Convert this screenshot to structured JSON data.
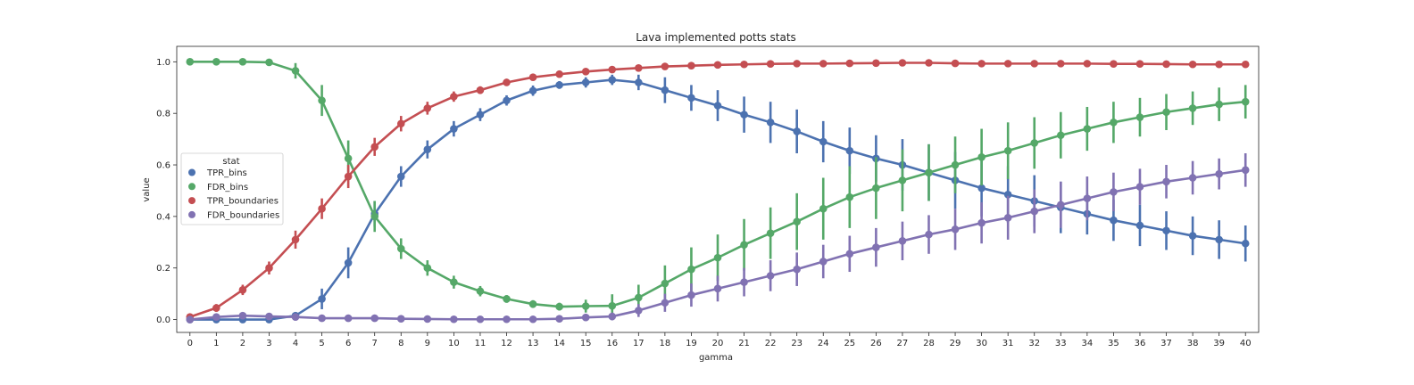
{
  "chart_data": {
    "type": "line",
    "title": "Lava implemented potts stats",
    "xlabel": "gamma",
    "ylabel": "value",
    "x": [
      0,
      1,
      2,
      3,
      4,
      5,
      6,
      7,
      8,
      9,
      10,
      11,
      12,
      13,
      14,
      15,
      16,
      17,
      18,
      19,
      20,
      21,
      22,
      23,
      24,
      25,
      26,
      27,
      28,
      29,
      30,
      31,
      32,
      33,
      34,
      35,
      36,
      37,
      38,
      39,
      40
    ],
    "yticks": [
      0.0,
      0.2,
      0.4,
      0.6,
      0.8,
      1.0
    ],
    "ytick_labels": [
      "0.0",
      "0.2",
      "0.4",
      "0.6",
      "0.8",
      "1.0"
    ],
    "ylim": [
      -0.05,
      1.06
    ],
    "legend_title": "stat",
    "legend_position": "center-left",
    "grid": false,
    "series": [
      {
        "name": "TPR_bins",
        "color": "#4c72b0",
        "values": [
          0.0,
          0.0,
          0.0,
          0.0,
          0.015,
          0.08,
          0.22,
          0.41,
          0.555,
          0.66,
          0.74,
          0.795,
          0.85,
          0.888,
          0.91,
          0.92,
          0.93,
          0.92,
          0.89,
          0.86,
          0.83,
          0.795,
          0.765,
          0.73,
          0.69,
          0.655,
          0.625,
          0.6,
          0.57,
          0.54,
          0.51,
          0.485,
          0.46,
          0.435,
          0.41,
          0.385,
          0.365,
          0.345,
          0.325,
          0.31,
          0.295
        ],
        "err": [
          0.0,
          0.0,
          0.0,
          0.0,
          0.01,
          0.04,
          0.06,
          0.05,
          0.04,
          0.035,
          0.03,
          0.025,
          0.02,
          0.02,
          0.015,
          0.02,
          0.02,
          0.03,
          0.05,
          0.05,
          0.06,
          0.07,
          0.08,
          0.085,
          0.08,
          0.09,
          0.09,
          0.1,
          0.11,
          0.11,
          0.11,
          0.11,
          0.1,
          0.1,
          0.08,
          0.08,
          0.08,
          0.075,
          0.075,
          0.075,
          0.07
        ]
      },
      {
        "name": "FDR_bins",
        "color": "#55a868",
        "values": [
          1.0,
          1.0,
          1.0,
          0.998,
          0.965,
          0.85,
          0.625,
          0.4,
          0.275,
          0.2,
          0.145,
          0.11,
          0.08,
          0.06,
          0.05,
          0.052,
          0.053,
          0.085,
          0.14,
          0.195,
          0.24,
          0.29,
          0.335,
          0.38,
          0.43,
          0.475,
          0.51,
          0.54,
          0.57,
          0.6,
          0.63,
          0.655,
          0.685,
          0.715,
          0.74,
          0.765,
          0.785,
          0.805,
          0.82,
          0.835,
          0.845
        ],
        "err": [
          0.0,
          0.0,
          0.0,
          0.005,
          0.03,
          0.06,
          0.07,
          0.06,
          0.04,
          0.03,
          0.025,
          0.02,
          0.015,
          0.015,
          0.015,
          0.025,
          0.045,
          0.05,
          0.07,
          0.085,
          0.09,
          0.1,
          0.1,
          0.11,
          0.12,
          0.12,
          0.12,
          0.12,
          0.11,
          0.11,
          0.11,
          0.11,
          0.1,
          0.09,
          0.085,
          0.08,
          0.075,
          0.07,
          0.065,
          0.065,
          0.065
        ]
      },
      {
        "name": "TPR_boundaries",
        "color": "#c44e52",
        "values": [
          0.01,
          0.045,
          0.115,
          0.2,
          0.31,
          0.43,
          0.555,
          0.67,
          0.76,
          0.82,
          0.865,
          0.89,
          0.92,
          0.94,
          0.952,
          0.962,
          0.97,
          0.976,
          0.982,
          0.985,
          0.988,
          0.99,
          0.992,
          0.993,
          0.993,
          0.994,
          0.995,
          0.996,
          0.996,
          0.994,
          0.993,
          0.993,
          0.993,
          0.993,
          0.993,
          0.992,
          0.992,
          0.991,
          0.99,
          0.99,
          0.99
        ],
        "err": [
          0.01,
          0.015,
          0.02,
          0.025,
          0.035,
          0.04,
          0.045,
          0.035,
          0.03,
          0.025,
          0.02,
          0.015,
          0.012,
          0.01,
          0.01,
          0.008,
          0.008,
          0.006,
          0.005,
          0.005,
          0.004,
          0.004,
          0.004,
          0.004,
          0.004,
          0.004,
          0.004,
          0.004,
          0.004,
          0.004,
          0.004,
          0.004,
          0.004,
          0.004,
          0.004,
          0.004,
          0.004,
          0.004,
          0.004,
          0.004,
          0.004
        ]
      },
      {
        "name": "FDR_boundaries",
        "color": "#8172b2",
        "values": [
          0.0,
          0.01,
          0.015,
          0.012,
          0.01,
          0.005,
          0.005,
          0.005,
          0.003,
          0.002,
          0.001,
          0.001,
          0.001,
          0.001,
          0.003,
          0.008,
          0.012,
          0.035,
          0.065,
          0.095,
          0.12,
          0.145,
          0.17,
          0.195,
          0.225,
          0.255,
          0.28,
          0.305,
          0.33,
          0.35,
          0.375,
          0.395,
          0.42,
          0.445,
          0.47,
          0.495,
          0.515,
          0.535,
          0.55,
          0.565,
          0.58
        ],
        "err": [
          0.0,
          0.01,
          0.01,
          0.01,
          0.01,
          0.005,
          0.005,
          0.005,
          0.004,
          0.003,
          0.002,
          0.002,
          0.002,
          0.002,
          0.004,
          0.01,
          0.015,
          0.025,
          0.035,
          0.045,
          0.05,
          0.055,
          0.06,
          0.065,
          0.065,
          0.07,
          0.075,
          0.075,
          0.075,
          0.08,
          0.08,
          0.085,
          0.085,
          0.09,
          0.085,
          0.075,
          0.07,
          0.065,
          0.065,
          0.06,
          0.065
        ]
      }
    ]
  }
}
